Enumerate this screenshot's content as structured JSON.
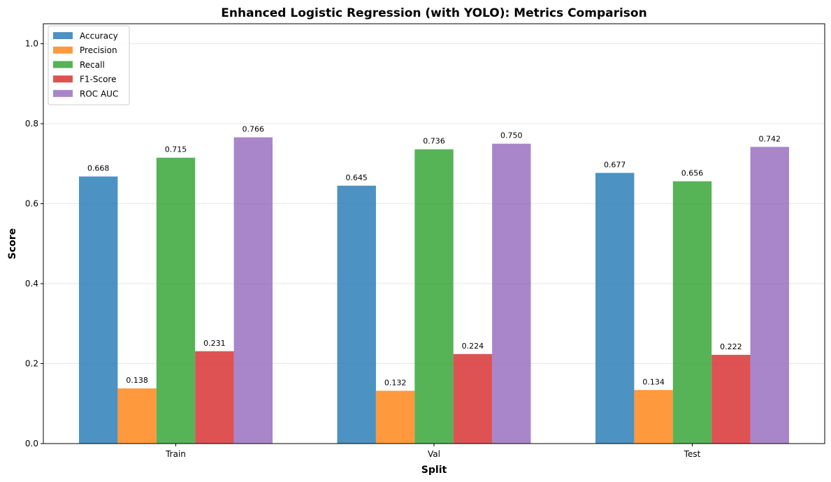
{
  "chart_data": {
    "type": "bar",
    "title": "Enhanced Logistic Regression (with YOLO): Metrics Comparison",
    "xlabel": "Split",
    "ylabel": "Score",
    "categories": [
      "Train",
      "Val",
      "Test"
    ],
    "ylim": [
      0,
      1.05
    ],
    "yticks": [
      "0.0",
      "0.2",
      "0.4",
      "0.6",
      "0.8",
      "1.0"
    ],
    "grid": "y",
    "legend_position": "top-left",
    "series": [
      {
        "name": "Accuracy",
        "color": "#1f77b4",
        "values": [
          0.668,
          0.645,
          0.677
        ],
        "labels": [
          "0.668",
          "0.645",
          "0.677"
        ]
      },
      {
        "name": "Precision",
        "color": "#ff7f0e",
        "values": [
          0.138,
          0.132,
          0.134
        ],
        "labels": [
          "0.138",
          "0.132",
          "0.134"
        ]
      },
      {
        "name": "Recall",
        "color": "#2ca02c",
        "values": [
          0.715,
          0.736,
          0.656
        ],
        "labels": [
          "0.715",
          "0.736",
          "0.656"
        ]
      },
      {
        "name": "F1-Score",
        "color": "#d62728",
        "values": [
          0.231,
          0.224,
          0.222
        ],
        "labels": [
          "0.231",
          "0.224",
          "0.222"
        ]
      },
      {
        "name": "ROC AUC",
        "color": "#9467bd",
        "values": [
          0.766,
          0.75,
          0.742
        ],
        "labels": [
          "0.766",
          "0.750",
          "0.742"
        ]
      }
    ]
  }
}
